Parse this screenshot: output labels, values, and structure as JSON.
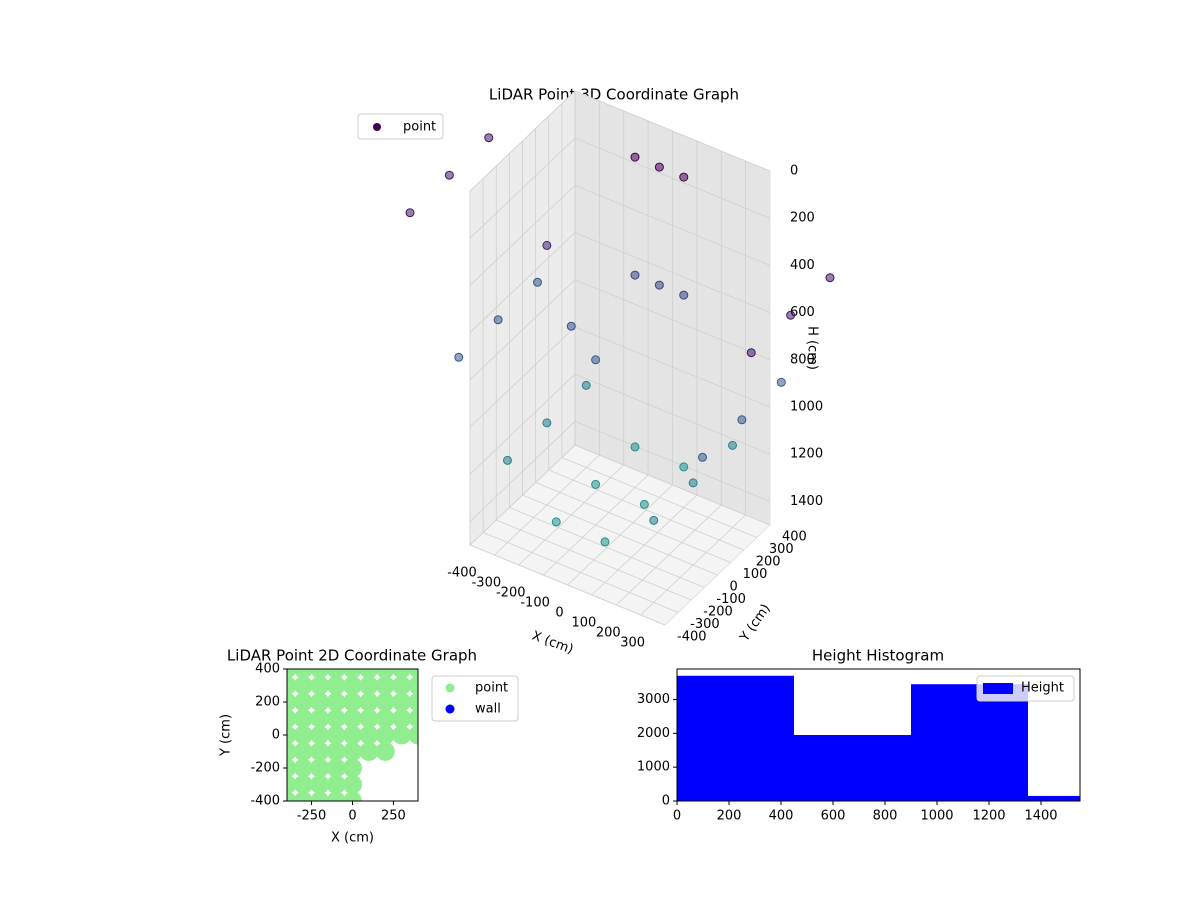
{
  "chart_data": [
    {
      "type": "scatter3d",
      "title": "LiDAR Point 3D Coordinate Graph",
      "xlabel": "X (cm)",
      "ylabel": "Y (cm)",
      "zlabel": "H (cm)",
      "xlim": [
        -400,
        400
      ],
      "ylim": [
        -400,
        400
      ],
      "zlim": [
        0,
        1500
      ],
      "zinverted": true,
      "xticks": [
        -400,
        -300,
        -200,
        -100,
        0,
        100,
        200,
        300
      ],
      "yticks": [
        -400,
        -300,
        -200,
        -100,
        0,
        100,
        200,
        300,
        400
      ],
      "zticks": [
        0,
        200,
        400,
        600,
        800,
        1000,
        1200,
        1400
      ],
      "colormap": "viridis",
      "legend": "upper left",
      "grid": true,
      "series": [
        {
          "name": "point",
          "color": "#440154",
          "x": [
            -700,
            -700,
            -700,
            -500,
            -500,
            -500,
            -300,
            -300,
            -300,
            -100,
            -100,
            -100,
            100,
            100,
            100,
            300,
            300,
            300,
            500,
            500,
            500,
            700,
            700,
            700,
            -100,
            0,
            100,
            -100,
            0,
            100,
            -300,
            -200,
            -100
          ],
          "y": [
            -300,
            0,
            300,
            -300,
            0,
            300,
            -300,
            0,
            300,
            -300,
            0,
            300,
            -300,
            0,
            300,
            -300,
            0,
            300,
            -300,
            0,
            300,
            -300,
            0,
            300,
            300,
            300,
            300,
            300,
            300,
            300,
            0,
            0,
            0
          ],
          "z": [
            272,
            272,
            272,
            800,
            800,
            800,
            1152,
            1152,
            1152,
            1328,
            1328,
            1328,
            1328,
            1328,
            1328,
            1152,
            1152,
            1152,
            800,
            800,
            800,
            272,
            272,
            272,
            100,
            100,
            100,
            600,
            600,
            600,
            400,
            700,
            800
          ]
        }
      ]
    },
    {
      "type": "scatter",
      "title": "LiDAR Point 2D Coordinate Graph",
      "xlabel": "X (cm)",
      "ylabel": "Y (cm)",
      "xlim": [
        -400,
        400
      ],
      "ylim": [
        -400,
        400
      ],
      "xticks": [
        -250,
        0,
        250
      ],
      "yticks": [
        -400,
        -200,
        0,
        200,
        400
      ],
      "legend": "outside upper right",
      "series": [
        {
          "name": "point",
          "color": "#90ee90",
          "x": [
            -400,
            -400,
            -400,
            -400,
            -400,
            -400,
            -400,
            -400,
            -400,
            -300,
            -300,
            -300,
            -300,
            -300,
            -300,
            -300,
            -300,
            -300,
            -200,
            -200,
            -200,
            -200,
            -200,
            -200,
            -200,
            -200,
            -200,
            -100,
            -100,
            -100,
            -100,
            -100,
            -100,
            -100,
            -100,
            -100,
            0,
            0,
            0,
            0,
            0,
            0,
            0,
            0,
            0,
            100,
            100,
            100,
            100,
            100,
            100,
            200,
            200,
            200,
            200,
            200,
            200,
            300,
            300,
            300,
            300,
            300,
            400,
            400,
            400,
            400,
            400
          ],
          "y": [
            -400,
            -300,
            -200,
            -100,
            0,
            100,
            200,
            300,
            400,
            -400,
            -300,
            -200,
            -100,
            0,
            100,
            200,
            300,
            400,
            -400,
            -300,
            -200,
            -100,
            0,
            100,
            200,
            300,
            400,
            -400,
            -300,
            -200,
            -100,
            0,
            100,
            200,
            300,
            400,
            -400,
            -300,
            -200,
            -100,
            0,
            100,
            200,
            300,
            400,
            -100,
            0,
            100,
            200,
            300,
            400,
            -100,
            0,
            100,
            200,
            300,
            400,
            0,
            100,
            200,
            300,
            400,
            0,
            100,
            200,
            300,
            400
          ]
        },
        {
          "name": "wall",
          "color": "#0000ff",
          "x": [],
          "y": []
        }
      ]
    },
    {
      "type": "histogram",
      "title": "Height Histogram",
      "bins": [
        0,
        450,
        900,
        1350,
        1800
      ],
      "xlim": [
        0,
        1550
      ],
      "ylim": [
        0,
        3900
      ],
      "xticks": [
        0,
        200,
        400,
        600,
        800,
        1000,
        1200,
        1400
      ],
      "yticks": [
        0,
        1000,
        2000,
        3000
      ],
      "legend": "upper right",
      "series": [
        {
          "name": "Height",
          "color": "#0000ff",
          "values": [
            3700,
            1950,
            3450,
            150
          ]
        }
      ]
    }
  ]
}
